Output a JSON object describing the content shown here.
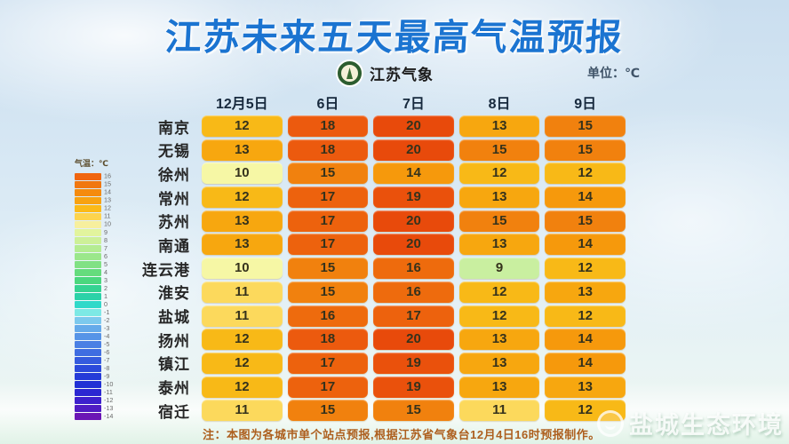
{
  "title": "江苏未来五天最高气温预报",
  "logo": {
    "name": "jiangsu-weather-logo",
    "text": "江苏气象"
  },
  "unit_label": "单位：℃",
  "legend": {
    "title": "气温：℃",
    "entries": [
      {
        "value": 16,
        "color": "#f0650f"
      },
      {
        "value": 15,
        "color": "#f1770f"
      },
      {
        "value": 14,
        "color": "#f58b0e"
      },
      {
        "value": 13,
        "color": "#f8a211"
      },
      {
        "value": 12,
        "color": "#fbba18"
      },
      {
        "value": 11,
        "color": "#fdd44d"
      },
      {
        "value": 10,
        "color": "#f7ef9e"
      },
      {
        "value": 9,
        "color": "#e2f49d"
      },
      {
        "value": 8,
        "color": "#cdf098"
      },
      {
        "value": 7,
        "color": "#b4ec92"
      },
      {
        "value": 6,
        "color": "#9be78b"
      },
      {
        "value": 5,
        "color": "#81e184"
      },
      {
        "value": 4,
        "color": "#65dc7d"
      },
      {
        "value": 3,
        "color": "#4bd77e"
      },
      {
        "value": 2,
        "color": "#35d392"
      },
      {
        "value": 1,
        "color": "#2bd2a8"
      },
      {
        "value": 0,
        "color": "#30d9c9"
      },
      {
        "value": -1,
        "color": "#7de9e5"
      },
      {
        "value": -2,
        "color": "#7cc9ed"
      },
      {
        "value": -3,
        "color": "#65aaea"
      },
      {
        "value": -4,
        "color": "#5694e7"
      },
      {
        "value": -5,
        "color": "#4a80e4"
      },
      {
        "value": -6,
        "color": "#3f6de1"
      },
      {
        "value": -7,
        "color": "#355bde"
      },
      {
        "value": -8,
        "color": "#2c4adb"
      },
      {
        "value": -9,
        "color": "#253bd8"
      },
      {
        "value": -10,
        "color": "#2031d5"
      },
      {
        "value": -11,
        "color": "#2b27d2"
      },
      {
        "value": -12,
        "color": "#3d20cd"
      },
      {
        "value": -13,
        "color": "#501cc3"
      },
      {
        "value": -14,
        "color": "#6b16b5"
      }
    ]
  },
  "table": {
    "columns": [
      "12月5日",
      "6日",
      "7日",
      "8日",
      "9日"
    ],
    "rows": [
      {
        "city": "南京",
        "values": [
          12,
          18,
          20,
          13,
          15
        ]
      },
      {
        "city": "无锡",
        "values": [
          13,
          18,
          20,
          15,
          15
        ]
      },
      {
        "city": "徐州",
        "values": [
          10,
          15,
          14,
          12,
          12
        ]
      },
      {
        "city": "常州",
        "values": [
          12,
          17,
          19,
          13,
          14
        ]
      },
      {
        "city": "苏州",
        "values": [
          13,
          17,
          20,
          15,
          15
        ]
      },
      {
        "city": "南通",
        "values": [
          13,
          17,
          20,
          13,
          14
        ]
      },
      {
        "city": "连云港",
        "values": [
          10,
          15,
          16,
          9,
          12
        ]
      },
      {
        "city": "淮安",
        "values": [
          11,
          15,
          16,
          12,
          13
        ]
      },
      {
        "city": "盐城",
        "values": [
          11,
          16,
          17,
          12,
          12
        ]
      },
      {
        "city": "扬州",
        "values": [
          12,
          18,
          20,
          13,
          14
        ]
      },
      {
        "city": "镇江",
        "values": [
          12,
          17,
          19,
          13,
          14
        ]
      },
      {
        "city": "泰州",
        "values": [
          12,
          17,
          19,
          13,
          13
        ]
      },
      {
        "city": "宿迁",
        "values": [
          11,
          15,
          15,
          11,
          12
        ]
      }
    ],
    "cell_colors": {
      "9": "#c9efa0",
      "10": "#f6f7a5",
      "11": "#fcd95c",
      "12": "#f8b917",
      "13": "#f7a70f",
      "14": "#f6990c",
      "15": "#f1810e",
      "16": "#ee6b0d",
      "17": "#ed620d",
      "18": "#ec5a0e",
      "19": "#ea510c",
      "20": "#e84a0b"
    }
  },
  "note": "注：本图为各城市单个站点预报,根据江苏省气象台12月4日16时预报制作。",
  "watermark": "盐城生态环境",
  "chart_data": {
    "type": "heatmap",
    "title": "江苏未来五天最高气温预报",
    "unit": "℃",
    "categories": [
      "12月5日",
      "6日",
      "7日",
      "8日",
      "9日"
    ],
    "series": [
      {
        "name": "南京",
        "values": [
          12,
          18,
          20,
          13,
          15
        ]
      },
      {
        "name": "无锡",
        "values": [
          13,
          18,
          20,
          15,
          15
        ]
      },
      {
        "name": "徐州",
        "values": [
          10,
          15,
          14,
          12,
          12
        ]
      },
      {
        "name": "常州",
        "values": [
          12,
          17,
          19,
          13,
          14
        ]
      },
      {
        "name": "苏州",
        "values": [
          13,
          17,
          20,
          15,
          15
        ]
      },
      {
        "name": "南通",
        "values": [
          13,
          17,
          20,
          13,
          14
        ]
      },
      {
        "name": "连云港",
        "values": [
          10,
          15,
          16,
          9,
          12
        ]
      },
      {
        "name": "淮安",
        "values": [
          11,
          15,
          16,
          12,
          13
        ]
      },
      {
        "name": "盐城",
        "values": [
          11,
          16,
          17,
          12,
          12
        ]
      },
      {
        "name": "扬州",
        "values": [
          12,
          18,
          20,
          13,
          14
        ]
      },
      {
        "name": "镇江",
        "values": [
          12,
          17,
          19,
          13,
          14
        ]
      },
      {
        "name": "泰州",
        "values": [
          12,
          17,
          19,
          13,
          13
        ]
      },
      {
        "name": "宿迁",
        "values": [
          11,
          15,
          15,
          11,
          12
        ]
      }
    ],
    "legend_label": "气温：℃",
    "legend_range": [
      -14,
      16
    ],
    "source_note": "注：本图为各城市单个站点预报,根据江苏省气象台12月4日16时预报制作。"
  }
}
